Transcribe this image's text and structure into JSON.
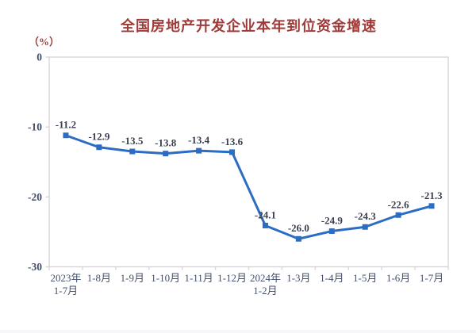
{
  "chart_data": {
    "type": "line",
    "title": "全国房地产开发企业本年到位资金增速",
    "unit_label": "（%）",
    "categories": [
      [
        "2023年",
        "1-7月"
      ],
      [
        "1-8月"
      ],
      [
        "1-9月"
      ],
      [
        "1-10月"
      ],
      [
        "1-11月"
      ],
      [
        "1-12月"
      ],
      [
        "2024年",
        "1-2月"
      ],
      [
        "1-3月"
      ],
      [
        "1-4月"
      ],
      [
        "1-5月"
      ],
      [
        "1-6月"
      ],
      [
        "1-7月"
      ]
    ],
    "values": [
      -11.2,
      -12.9,
      -13.5,
      -13.8,
      -13.4,
      -13.6,
      -24.1,
      -26.0,
      -24.9,
      -24.3,
      -22.6,
      -21.3
    ],
    "data_labels": [
      "-11.2",
      "-12.9",
      "-13.5",
      "-13.8",
      "-13.4",
      "-13.6",
      "-24.1",
      "-26.0",
      "-24.9",
      "-24.3",
      "-22.6",
      "-21.3"
    ],
    "y_ticks": [
      0,
      -10,
      -20,
      -30
    ],
    "y_tick_labels": [
      "0",
      "-10",
      "-20",
      "-30"
    ],
    "ylim": [
      -30,
      0
    ],
    "grid": false,
    "legend_position": "none",
    "marker": "square",
    "colors": {
      "line": "#2B6CC4",
      "marker": "#2B6CC4",
      "title": "#9E3A38",
      "unit_label": "#9E3A38",
      "axis_labels": "#44506B",
      "data_labels": "#3A4050",
      "plot_border": "#D4D4D6",
      "background": "#FFFFFF"
    }
  }
}
